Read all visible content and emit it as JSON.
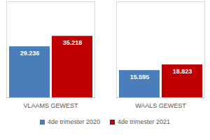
{
  "chart_data": {
    "type": "bar",
    "categories": [
      "VLAAMS GEWEST",
      "WAALS GEWEST"
    ],
    "series": [
      {
        "name": "4de trimester 2020",
        "color": "#4a7ebb",
        "values": [
          29236,
          15595
        ],
        "value_labels": [
          "29.236",
          "15.595"
        ]
      },
      {
        "name": "4de trimester 2021",
        "color": "#c00000",
        "values": [
          35218,
          18823
        ],
        "value_labels": [
          "35.218",
          "18.823"
        ]
      }
    ],
    "ylim": [
      0,
      55000
    ],
    "yticks": [],
    "grid": false,
    "legend": "bottom",
    "data_labels": true,
    "tick_labels": "x"
  }
}
